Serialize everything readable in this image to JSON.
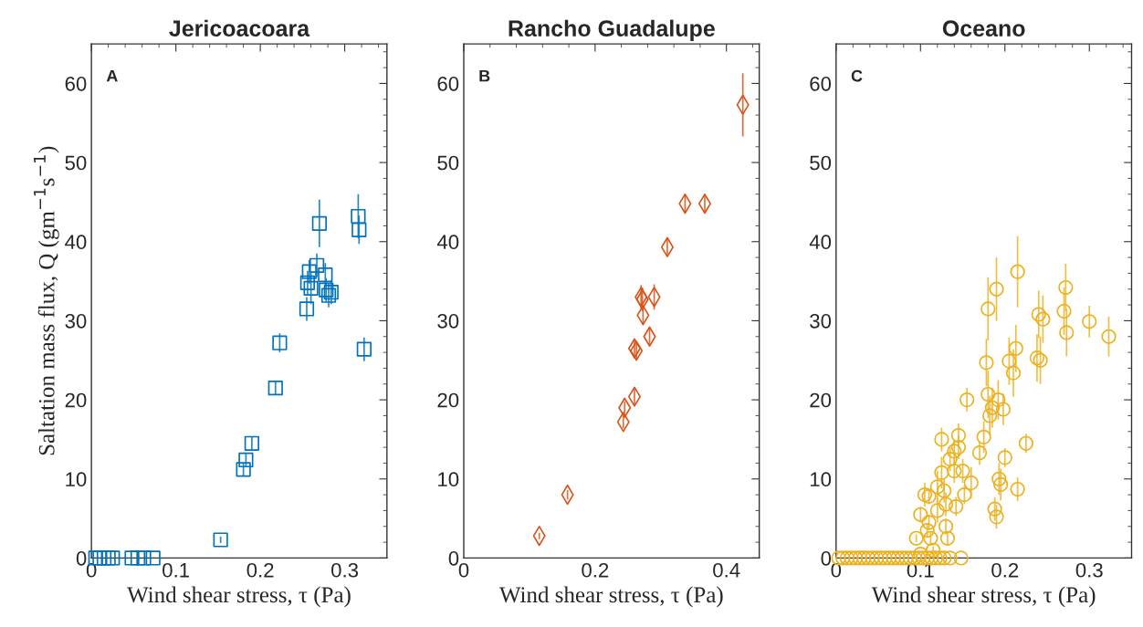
{
  "chart_data": [
    {
      "type": "scatter",
      "title": "Jericoacoara",
      "xlabel": "Wind shear stress, τ (Pa)",
      "ylabel": "Saltation mass flux, Q (gm$^{−1}$s$^{−1}$)",
      "annotations": [
        "A"
      ],
      "marker": "square",
      "color": "#0072bd",
      "x": [
        0.005,
        0.01,
        0.015,
        0.02,
        0.025,
        0.048,
        0.055,
        0.062,
        0.073,
        0.153,
        0.18,
        0.183,
        0.19,
        0.218,
        0.223,
        0.255,
        0.256,
        0.258,
        0.26,
        0.267,
        0.27,
        0.277,
        0.278,
        0.281,
        0.284,
        0.316,
        0.317,
        0.323
      ],
      "values": [
        0,
        0,
        0,
        0,
        0,
        0,
        0,
        0,
        0,
        2.3,
        11.2,
        12.4,
        14.5,
        21.5,
        27.2,
        31.5,
        34.8,
        36.2,
        34.1,
        37.0,
        42.3,
        35.8,
        33.9,
        33.2,
        33.6,
        43.2,
        41.5,
        26.4
      ],
      "errors": [
        0,
        0,
        0,
        0,
        0,
        0,
        0,
        0,
        0,
        0.4,
        0.8,
        0.8,
        0.8,
        0.8,
        1.2,
        1.5,
        1.5,
        1.5,
        2.0,
        1.5,
        3.0,
        1.5,
        1.5,
        1.5,
        1.5,
        2.8,
        1.8,
        1.5
      ],
      "xlim": [
        0,
        0.35
      ],
      "ylim": [
        0,
        65
      ],
      "xticks": [
        0,
        0.1,
        0.2,
        0.3
      ],
      "yticks": [
        0,
        10,
        20,
        30,
        40,
        50,
        60
      ]
    },
    {
      "type": "scatter",
      "title": "Rancho Guadalupe",
      "xlabel": "Wind shear stress, τ (Pa)",
      "annotations": [
        "B"
      ],
      "marker": "diamond",
      "color": "#d95319",
      "x": [
        0.115,
        0.158,
        0.243,
        0.245,
        0.26,
        0.26,
        0.263,
        0.27,
        0.272,
        0.273,
        0.283,
        0.29,
        0.31,
        0.337,
        0.367,
        0.425
      ],
      "values": [
        2.8,
        8.0,
        17.2,
        19.0,
        20.4,
        26.5,
        26.2,
        33.0,
        32.7,
        30.7,
        28.0,
        33.0,
        39.3,
        44.8,
        44.8,
        57.3
      ],
      "errors": [
        0.4,
        0.6,
        0.8,
        0.8,
        1.0,
        1.2,
        1.2,
        1.5,
        1.5,
        1.2,
        1.2,
        1.6,
        1.0,
        1.2,
        1.2,
        4.0
      ],
      "xlim": [
        0,
        0.45
      ],
      "ylim": [
        0,
        65
      ],
      "xticks": [
        0,
        0.2,
        0.4
      ],
      "yticks": [
        0,
        10,
        20,
        30,
        40,
        50,
        60
      ]
    },
    {
      "type": "scatter",
      "title": "Oceano",
      "xlabel": "Wind shear stress, τ (Pa)",
      "annotations": [
        "C"
      ],
      "marker": "circle",
      "color": "#edb120",
      "x": [
        0.003,
        0.008,
        0.013,
        0.018,
        0.023,
        0.028,
        0.033,
        0.038,
        0.043,
        0.048,
        0.053,
        0.058,
        0.063,
        0.068,
        0.073,
        0.078,
        0.083,
        0.088,
        0.093,
        0.098,
        0.103,
        0.108,
        0.113,
        0.118,
        0.123,
        0.128,
        0.135,
        0.148,
        0.1,
        0.095,
        0.1,
        0.105,
        0.11,
        0.11,
        0.108,
        0.112,
        0.115,
        0.12,
        0.12,
        0.125,
        0.125,
        0.128,
        0.13,
        0.13,
        0.132,
        0.135,
        0.14,
        0.14,
        0.142,
        0.145,
        0.145,
        0.15,
        0.152,
        0.155,
        0.16,
        0.17,
        0.175,
        0.178,
        0.18,
        0.18,
        0.182,
        0.185,
        0.188,
        0.19,
        0.19,
        0.192,
        0.193,
        0.195,
        0.198,
        0.2,
        0.205,
        0.21,
        0.213,
        0.215,
        0.215,
        0.225,
        0.238,
        0.24,
        0.242,
        0.245,
        0.27,
        0.272,
        0.273,
        0.3,
        0.323
      ],
      "values": [
        0,
        0,
        0,
        0,
        0,
        0,
        0,
        0,
        0,
        0,
        0,
        0,
        0,
        0,
        0,
        0,
        0,
        0,
        0,
        0,
        0,
        0,
        0,
        0,
        0,
        0,
        0,
        0,
        5.5,
        2.5,
        0.5,
        8.0,
        7.8,
        4.5,
        3.5,
        2.5,
        1.0,
        6.0,
        9.0,
        15.0,
        10.8,
        8.5,
        6.8,
        4.0,
        2.5,
        12.5,
        13.5,
        11.0,
        6.5,
        15.5,
        14.0,
        11.0,
        8.0,
        20.0,
        9.5,
        13.3,
        15.3,
        24.7,
        31.5,
        20.7,
        18.0,
        19.0,
        6.2,
        5.2,
        34.0,
        20.0,
        10.0,
        9.3,
        18.8,
        12.7,
        24.9,
        23.4,
        26.5,
        36.2,
        8.7,
        14.5,
        25.3,
        30.8,
        25.0,
        30.2,
        31.2,
        34.2,
        28.5,
        29.9,
        28.0
      ],
      "errors": [
        0,
        0,
        0,
        0,
        0,
        0,
        0,
        0,
        0,
        0,
        0,
        0,
        0,
        0,
        0,
        0,
        0,
        0,
        0,
        0,
        0,
        0,
        0,
        0,
        0,
        0,
        0,
        0,
        1.0,
        0.5,
        null,
        1.5,
        1.0,
        1.0,
        0.8,
        0.8,
        0.5,
        1.5,
        2.0,
        1.5,
        2.0,
        1.5,
        1.5,
        1.0,
        0.8,
        1.5,
        1.5,
        1.5,
        1.2,
        1.5,
        1.5,
        1.5,
        1.2,
        1.5,
        2.0,
        1.5,
        2.0,
        3.0,
        4.0,
        3.0,
        2.5,
        2.5,
        1.5,
        1.5,
        4.0,
        2.5,
        2.0,
        2.0,
        2.0,
        1.2,
        3.0,
        3.0,
        3.0,
        4.5,
        1.5,
        1.2,
        3.0,
        3.0,
        3.0,
        3.0,
        3.0,
        3.0,
        3.0,
        2.0,
        2.5
      ],
      "xlim": [
        0,
        0.35
      ],
      "ylim": [
        0,
        65
      ],
      "xticks": [
        0,
        0.1,
        0.2,
        0.3
      ],
      "yticks": [
        0,
        10,
        20,
        30,
        40,
        50,
        60
      ]
    }
  ]
}
